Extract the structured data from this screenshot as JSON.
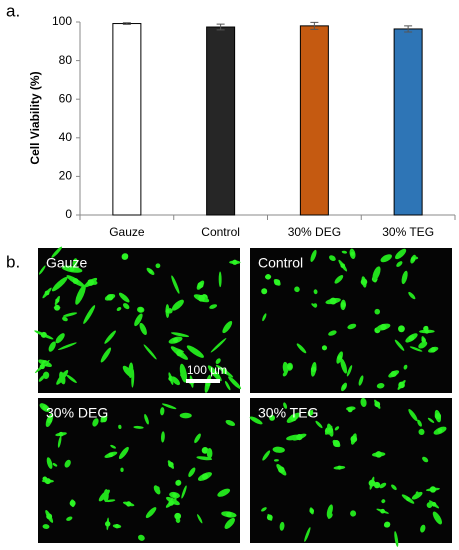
{
  "chart_data": {
    "type": "bar",
    "panel_label": "a.",
    "y_label": "Cell Viability (%)",
    "categories": [
      "Gauze",
      "Control",
      "30% DEG",
      "30% TEG"
    ],
    "values": [
      99.2,
      97.4,
      98.0,
      96.4
    ],
    "errors": [
      0.4,
      1.5,
      1.8,
      1.6
    ],
    "colors": [
      "#ffffff",
      "#262626",
      "#c55a11",
      "#2e75b6"
    ],
    "ylim": [
      0,
      100
    ],
    "yticks": [
      0,
      20,
      40,
      60,
      80,
      100
    ],
    "grid": false
  },
  "images": {
    "panel_label": "b.",
    "scale_bar": "100 µm",
    "panels": [
      {
        "label": "Gauze"
      },
      {
        "label": "Control"
      },
      {
        "label": "30% DEG"
      },
      {
        "label": "30% TEG"
      }
    ]
  }
}
